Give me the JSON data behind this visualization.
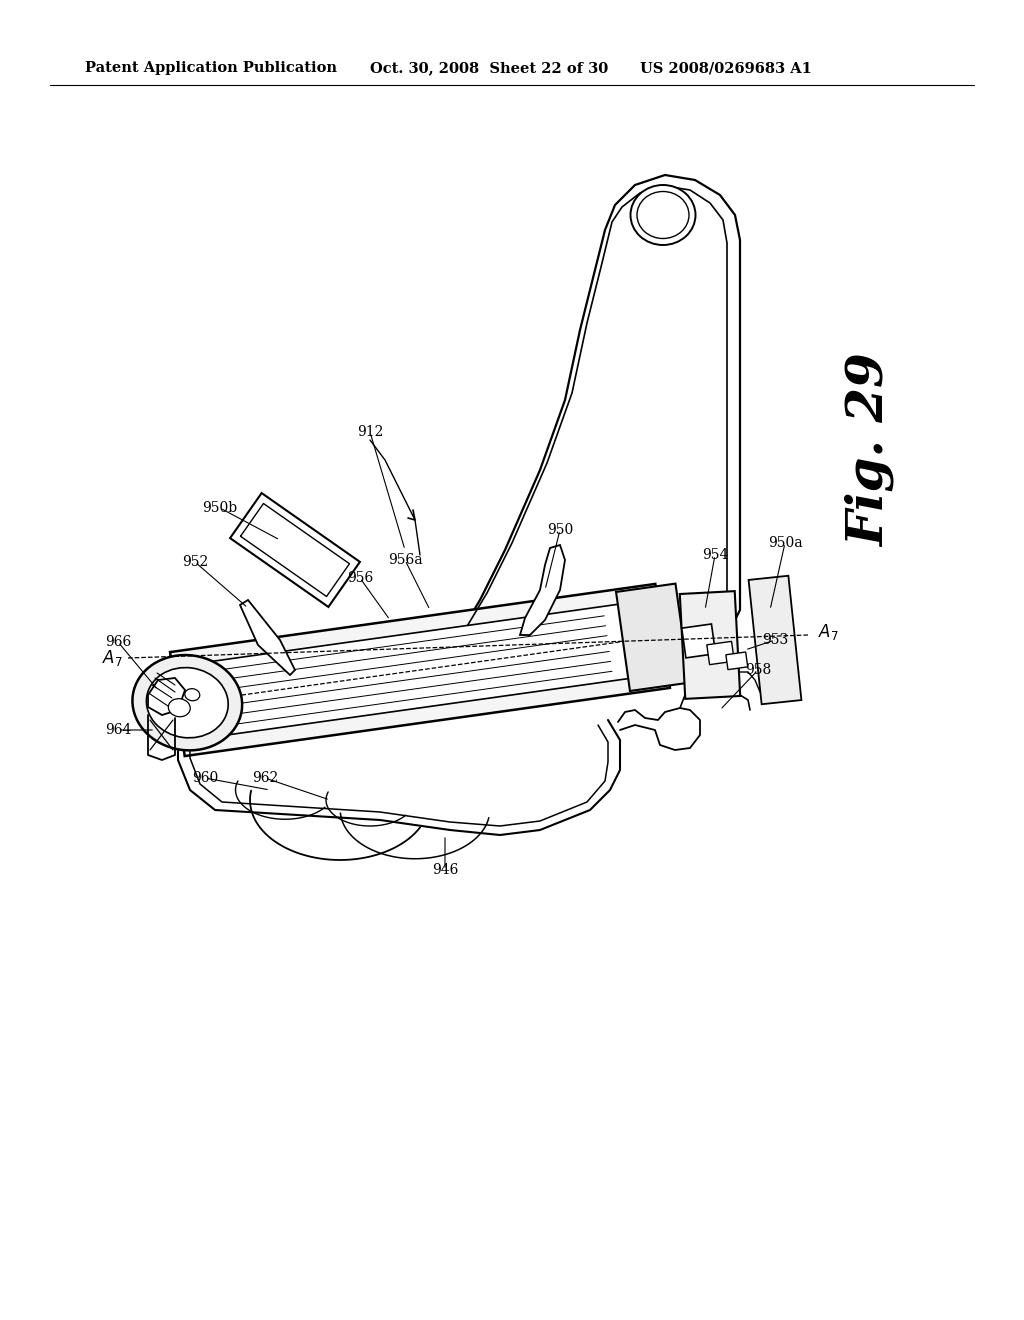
{
  "bg_color": "#ffffff",
  "header_left": "Patent Application Publication",
  "header_mid": "Oct. 30, 2008  Sheet 22 of 30",
  "header_right": "US 2008/0269683 A1",
  "fig_label": "Fig. 29",
  "lw_main": 1.5,
  "lw_thin": 0.9,
  "lw_thick": 2.0
}
